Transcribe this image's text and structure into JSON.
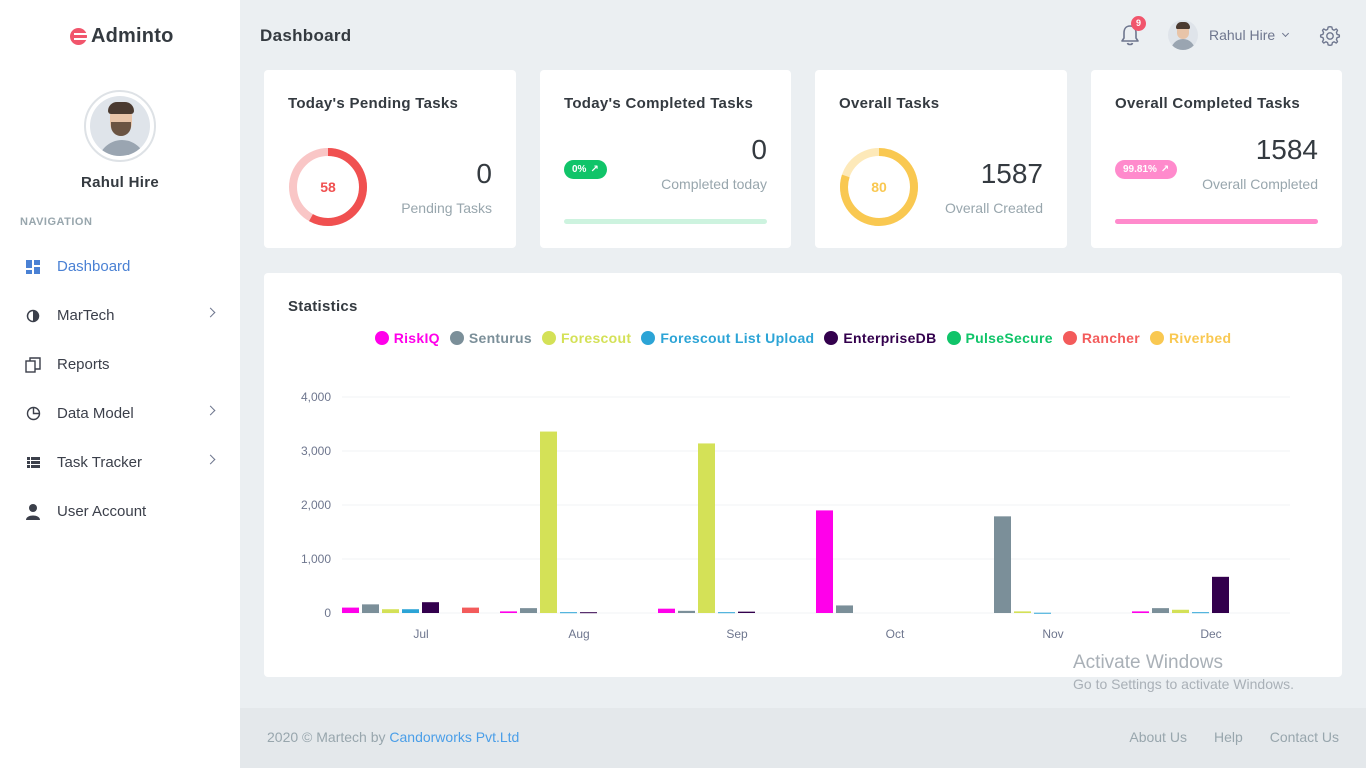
{
  "brand": {
    "name": "Adminto"
  },
  "profile": {
    "name": "Rahul Hire"
  },
  "nav": {
    "title": "NAVIGATION",
    "items": [
      {
        "label": "Dashboard"
      },
      {
        "label": "MarTech"
      },
      {
        "label": "Reports"
      },
      {
        "label": "Data Model"
      },
      {
        "label": "Task Tracker"
      },
      {
        "label": "User Account"
      }
    ]
  },
  "header": {
    "title": "Dashboard",
    "notifications": "9",
    "user": "Rahul Hire"
  },
  "cards": {
    "pending": {
      "title": "Today's Pending Tasks",
      "donut": "58",
      "value": "0",
      "label": "Pending Tasks",
      "percent": 58,
      "color": "#f05050"
    },
    "completed": {
      "title": "Today's Completed Tasks",
      "badge": "0%",
      "value": "0",
      "label": "Completed today",
      "progress": 0,
      "color": "#10c469"
    },
    "overall": {
      "title": "Overall Tasks",
      "donut": "80",
      "value": "1587",
      "label": "Overall Created",
      "percent": 80,
      "color": "#f9c851"
    },
    "overall_completed": {
      "title": "Overall Completed Tasks",
      "badge": "99.81%",
      "value": "1584",
      "label": "Overall Completed",
      "progress": 99.81,
      "color": "#ff8acc"
    }
  },
  "statistics": {
    "title": "Statistics"
  },
  "chart_data": {
    "type": "bar",
    "categories": [
      "Jul",
      "Aug",
      "Sep",
      "Oct",
      "Nov",
      "Dec"
    ],
    "ylim": [
      0,
      4000
    ],
    "yticks": [
      0,
      1000,
      2000,
      3000,
      4000
    ],
    "ytick_labels": [
      "0",
      "1,000",
      "2,000",
      "3,000",
      "4,000"
    ],
    "series": [
      {
        "name": "RiskIQ",
        "color": "#ff00ea",
        "values": [
          100,
          30,
          80,
          1900,
          0,
          30
        ]
      },
      {
        "name": "Senturus",
        "color": "#7b8f99",
        "values": [
          160,
          90,
          40,
          140,
          1790,
          90
        ]
      },
      {
        "name": "Forescout",
        "color": "#d4e157",
        "values": [
          70,
          3360,
          3140,
          0,
          30,
          60
        ]
      },
      {
        "name": "Forescout List Upload",
        "color": "#2ca4d6",
        "values": [
          70,
          15,
          15,
          0,
          5,
          15
        ]
      },
      {
        "name": "EnterpriseDB",
        "color": "#33004d",
        "values": [
          200,
          15,
          25,
          0,
          0,
          670
        ]
      },
      {
        "name": "PulseSecure",
        "color": "#10c469",
        "values": [
          0,
          0,
          0,
          0,
          0,
          0
        ]
      },
      {
        "name": "Rancher",
        "color": "#f35b5b",
        "values": [
          100,
          0,
          0,
          0,
          0,
          0
        ]
      },
      {
        "name": "Riverbed",
        "color": "#f9c851",
        "values": [
          0,
          0,
          0,
          0,
          0,
          0
        ]
      }
    ]
  },
  "footer": {
    "copyright": "2020 © Martech by ",
    "company": "Candorworks Pvt.Ltd",
    "links": [
      "About Us",
      "Help",
      "Contact Us"
    ]
  },
  "watermark": {
    "title": "Activate Windows",
    "subtitle": "Go to Settings to activate Windows."
  }
}
